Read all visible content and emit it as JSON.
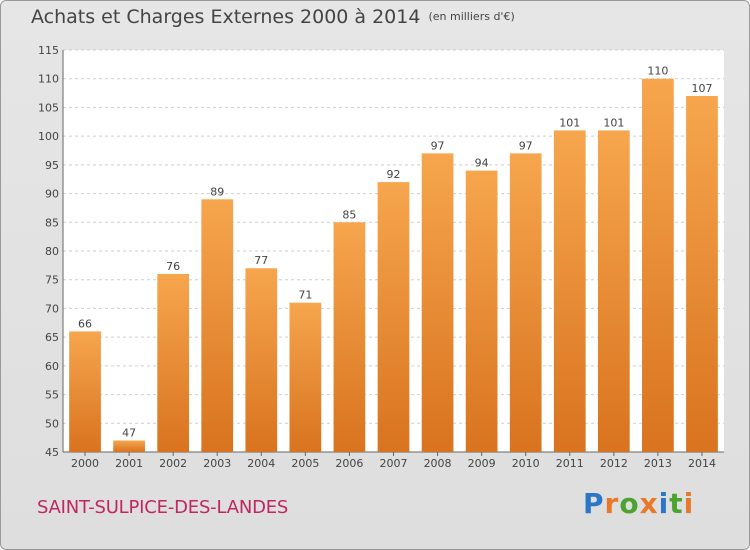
{
  "header": {
    "title": "Achats et Charges Externes 2000 à 2014",
    "unit": "(en milliers d'€)"
  },
  "footer": {
    "location": "SAINT-SULPICE-DES-LANDES",
    "logo": [
      "P",
      "r",
      "o",
      "x",
      "i",
      "t",
      "i"
    ]
  },
  "colors": {
    "bar_light": "#f6a64e",
    "bar_dark": "#d9731f",
    "location": "#c0265f",
    "logo": [
      "#2a76c7",
      "#e8792a",
      "#4da32f",
      "#e8792a",
      "#2a76c7",
      "#4da32f",
      "#e8792a"
    ]
  },
  "chart_data": {
    "type": "bar",
    "title": "Achats et Charges Externes 2000 à 2014",
    "xlabel": "",
    "ylabel": "",
    "categories": [
      "2000",
      "2001",
      "2002",
      "2003",
      "2004",
      "2005",
      "2006",
      "2007",
      "2008",
      "2009",
      "2010",
      "2011",
      "2012",
      "2013",
      "2014"
    ],
    "values": [
      66,
      47,
      76,
      89,
      77,
      71,
      85,
      92,
      97,
      94,
      97,
      101,
      101,
      110,
      107
    ],
    "ylim": [
      45,
      115
    ],
    "yticks": [
      45,
      50,
      55,
      60,
      65,
      70,
      75,
      80,
      85,
      90,
      95,
      100,
      105,
      110,
      115
    ],
    "grid": true,
    "legend": "none"
  }
}
